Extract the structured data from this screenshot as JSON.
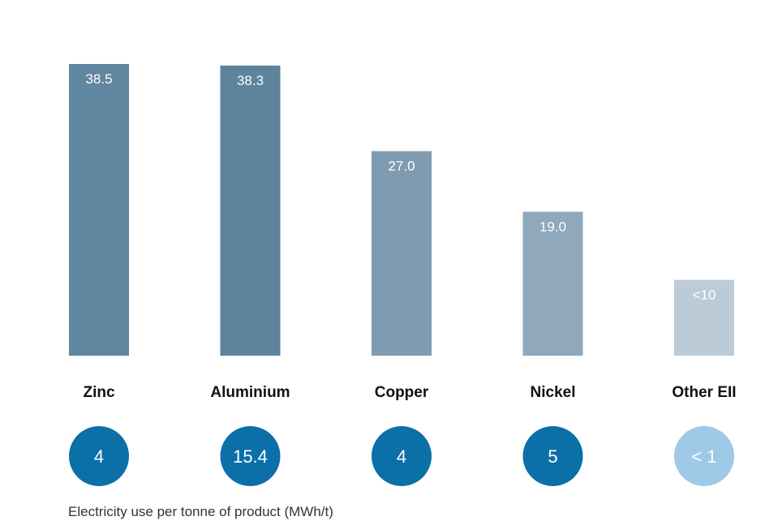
{
  "chart_data": {
    "type": "bar",
    "categories": [
      "Zinc",
      "Aluminium",
      "Copper",
      "Nickel",
      "Other EII"
    ],
    "values": [
      38.5,
      38.3,
      27.0,
      19.0,
      10
    ],
    "value_labels": [
      "38.5",
      "38.3",
      "27.0",
      "19.0",
      "<10"
    ],
    "bar_colors": [
      "#61869f",
      "#5e839d",
      "#7f9bb1",
      "#8fa8bc",
      "#bccbd8"
    ],
    "circle_values": [
      "4",
      "15.4",
      "4",
      "5",
      "< 1"
    ],
    "circle_colors": [
      "#0b6fa8",
      "#0b6fa8",
      "#0b6fa8",
      "#0b6fa8",
      "#9fc9e6"
    ],
    "ylim": [
      0,
      40
    ],
    "grid": false,
    "legend": "none"
  },
  "footer_text": "Electricity use per tonne of product (MWh/t)"
}
